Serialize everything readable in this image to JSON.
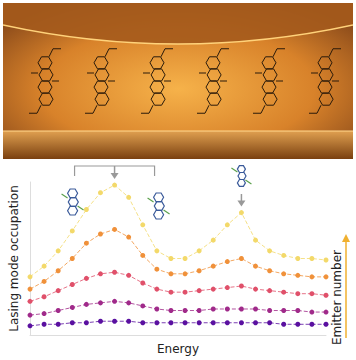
{
  "chart_data": {
    "type": "line",
    "xlabel": "Energy",
    "ylabel": "Lasing mode occupation",
    "annotation": "Emitter number",
    "x": [
      0,
      1,
      2,
      3,
      4,
      5,
      6,
      7,
      8,
      9,
      10,
      11,
      12,
      13,
      14,
      15,
      16,
      17,
      18,
      19,
      20,
      21
    ],
    "xlim": [
      0,
      21
    ],
    "ylim": [
      0,
      1
    ],
    "tick_labels": false,
    "grid": false,
    "marker": "circle",
    "line_style": "dashed",
    "series": [
      {
        "color": "#5a10a0",
        "values": [
          0.06,
          0.07,
          0.07,
          0.08,
          0.08,
          0.09,
          0.09,
          0.09,
          0.08,
          0.08,
          0.08,
          0.08,
          0.08,
          0.08,
          0.08,
          0.08,
          0.08,
          0.08,
          0.07,
          0.07,
          0.07,
          0.07
        ]
      },
      {
        "color": "#a02a8a",
        "values": [
          0.13,
          0.14,
          0.16,
          0.18,
          0.2,
          0.21,
          0.22,
          0.21,
          0.19,
          0.17,
          0.16,
          0.16,
          0.16,
          0.17,
          0.17,
          0.17,
          0.17,
          0.16,
          0.16,
          0.16,
          0.15,
          0.15
        ]
      },
      {
        "color": "#e0506a",
        "values": [
          0.22,
          0.25,
          0.29,
          0.33,
          0.37,
          0.4,
          0.41,
          0.39,
          0.34,
          0.3,
          0.28,
          0.28,
          0.29,
          0.3,
          0.31,
          0.32,
          0.3,
          0.29,
          0.28,
          0.27,
          0.27,
          0.26
        ]
      },
      {
        "color": "#f0913a",
        "values": [
          0.3,
          0.35,
          0.42,
          0.5,
          0.6,
          0.66,
          0.69,
          0.64,
          0.52,
          0.43,
          0.4,
          0.4,
          0.42,
          0.45,
          0.48,
          0.5,
          0.45,
          0.42,
          0.4,
          0.39,
          0.38,
          0.38
        ]
      },
      {
        "color": "#f3d96a",
        "values": [
          0.38,
          0.45,
          0.55,
          0.68,
          0.82,
          0.93,
          0.98,
          0.9,
          0.72,
          0.55,
          0.5,
          0.5,
          0.55,
          0.62,
          0.72,
          0.8,
          0.62,
          0.55,
          0.52,
          0.5,
          0.5,
          0.49
        ]
      }
    ]
  }
}
